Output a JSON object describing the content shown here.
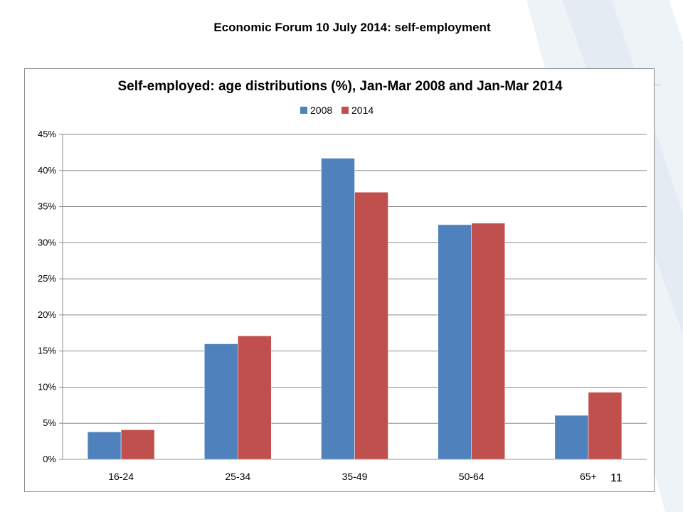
{
  "slide": {
    "title": "Economic Forum 10 July 2014: self-employment",
    "page_number": "11"
  },
  "chart_data": {
    "type": "bar",
    "title": "Self-employed: age distributions (%), Jan-Mar 2008 and Jan-Mar 2014",
    "categories": [
      "16-24",
      "25-34",
      "35-49",
      "50-64",
      "65+"
    ],
    "series": [
      {
        "name": "2008",
        "values": [
          3.8,
          16.0,
          41.7,
          32.5,
          6.1
        ],
        "color": "#4f81bd"
      },
      {
        "name": "2014",
        "values": [
          4.1,
          17.1,
          37.0,
          32.7,
          9.3
        ],
        "color": "#c0504d"
      }
    ],
    "ylim": [
      0,
      45
    ],
    "ytick_step": 5,
    "ytick_format": "percent",
    "grid": true,
    "legend": "top-center"
  }
}
